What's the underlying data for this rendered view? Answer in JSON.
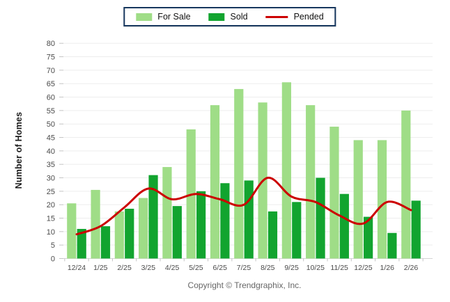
{
  "footer": {
    "copyright": "Copyright © Trendgraphix, Inc."
  },
  "chart_data": {
    "type": "bar+line combo",
    "categories": [
      "12/24",
      "1/25",
      "2/25",
      "3/25",
      "4/25",
      "5/25",
      "6/25",
      "7/25",
      "8/25",
      "9/25",
      "10/25",
      "11/25",
      "12/25",
      "1/26",
      "2/26"
    ],
    "series": [
      {
        "name": "For Sale",
        "type": "bar",
        "color": "#9fdd87",
        "values": [
          20.5,
          25.5,
          17.5,
          22.5,
          34,
          48,
          57,
          63,
          58,
          65.5,
          57,
          49,
          44,
          44,
          55
        ]
      },
      {
        "name": "Sold",
        "type": "bar",
        "color": "#12a42f",
        "values": [
          11,
          12,
          18.5,
          31,
          19.5,
          25,
          28,
          29,
          17.5,
          21,
          30,
          24,
          15.5,
          9.5,
          21.5
        ]
      },
      {
        "name": "Pended",
        "type": "line",
        "color": "#cc0000",
        "values": [
          9,
          12,
          19,
          26,
          22,
          24,
          22,
          20,
          30,
          23,
          21,
          16,
          13,
          21,
          18
        ]
      }
    ],
    "title": "",
    "xlabel": "",
    "ylabel": "Number of Homes",
    "ylim": [
      0,
      80
    ],
    "ytick_step": 5,
    "grid": true,
    "legend_position": "top-center",
    "line_style": "smooth"
  }
}
